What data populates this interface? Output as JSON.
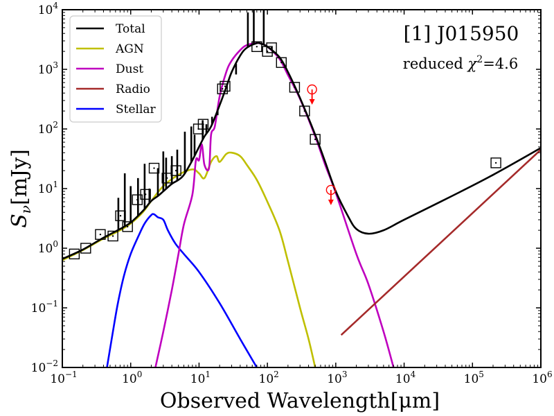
{
  "chart_data": {
    "type": "line",
    "title": "[1] J015950",
    "subtitle_prefix": "reduced ",
    "subtitle_symbol": "χ",
    "subtitle_exponent": "2",
    "subtitle_value": "=4.6",
    "xlabel": "Observed Wavelength",
    "xlabel_unit": "[μm]",
    "ylabel_symbol": "S",
    "ylabel_subscript": "ν",
    "ylabel_unit": "[mJy]",
    "xscale": "log",
    "yscale": "log",
    "xlim": [
      0.1,
      1000000
    ],
    "ylim": [
      0.01,
      10000
    ],
    "x_ticks": [
      {
        "value": 0.1,
        "base": "10",
        "exp": "−1"
      },
      {
        "value": 1,
        "base": "10",
        "exp": "0"
      },
      {
        "value": 10,
        "base": "10",
        "exp": "1"
      },
      {
        "value": 100,
        "base": "10",
        "exp": "2"
      },
      {
        "value": 1000,
        "base": "10",
        "exp": "3"
      },
      {
        "value": 10000,
        "base": "10",
        "exp": "4"
      },
      {
        "value": 100000,
        "base": "10",
        "exp": "5"
      },
      {
        "value": 1000000,
        "base": "10",
        "exp": "6"
      }
    ],
    "y_ticks": [
      {
        "value": 0.01,
        "base": "10",
        "exp": "−2"
      },
      {
        "value": 0.1,
        "base": "10",
        "exp": "−1"
      },
      {
        "value": 1,
        "base": "10",
        "exp": "0"
      },
      {
        "value": 10,
        "base": "10",
        "exp": "1"
      },
      {
        "value": 100,
        "base": "10",
        "exp": "2"
      },
      {
        "value": 1000,
        "base": "10",
        "exp": "3"
      },
      {
        "value": 10000,
        "base": "10",
        "exp": "4"
      }
    ],
    "legend_position": "top-left",
    "series": [
      {
        "name": "Total",
        "color": "#000000",
        "x": [
          0.1,
          0.2,
          0.4,
          0.7,
          1,
          1.5,
          2,
          2.5,
          3,
          4,
          5,
          6,
          8,
          10,
          12,
          15,
          20,
          25,
          30,
          40,
          50,
          70,
          80,
          100,
          150,
          200,
          300,
          500,
          700,
          1000,
          1500,
          2000,
          3000,
          5000,
          10000,
          50000,
          200000,
          1000000
        ],
        "y": [
          0.66,
          0.95,
          1.5,
          2.1,
          2.7,
          4.2,
          6.2,
          7.5,
          9,
          12,
          14,
          17,
          30,
          50,
          75,
          110,
          250,
          500,
          900,
          1700,
          2300,
          2750,
          2700,
          2400,
          1600,
          900,
          330,
          80,
          28,
          9,
          3.5,
          2.1,
          1.75,
          2,
          3,
          7.5,
          17,
          48
        ],
        "spikes": [
          [
            0.66,
            7
          ],
          [
            0.82,
            18
          ],
          [
            1.0,
            11
          ],
          [
            1.28,
            15
          ],
          [
            1.6,
            26
          ],
          [
            1.88,
            10
          ],
          [
            2.5,
            22
          ],
          [
            3.0,
            42
          ],
          [
            3.3,
            33
          ],
          [
            4.0,
            35
          ],
          [
            4.8,
            45
          ],
          [
            6.2,
            90
          ],
          [
            7.7,
            110
          ],
          [
            8.6,
            80
          ],
          [
            11.3,
            140
          ],
          [
            12.8,
            120
          ],
          [
            15.5,
            160
          ],
          [
            18.7,
            170
          ],
          [
            25.9,
            560
          ],
          [
            34.8,
            820
          ],
          [
            51.8,
            9000
          ],
          [
            63.2,
            10000
          ],
          [
            88.4,
            9800
          ],
          [
            121.9,
            1900
          ],
          [
            158,
            1500
          ]
        ]
      },
      {
        "name": "AGN",
        "color": "#bfbf00",
        "x": [
          0.1,
          0.2,
          0.4,
          0.7,
          1,
          1.5,
          2,
          3,
          5,
          8,
          10,
          12,
          15,
          18,
          20,
          25,
          30,
          40,
          50,
          70,
          100,
          150,
          200,
          300,
          400,
          500
        ],
        "y": [
          0.63,
          0.93,
          1.45,
          2.0,
          2.6,
          4.0,
          6.2,
          11,
          17,
          21,
          18,
          15,
          28,
          35,
          28,
          38,
          40,
          35,
          25,
          14,
          6,
          2,
          0.6,
          0.1,
          0.03,
          0.01
        ]
      },
      {
        "name": "Dust",
        "color": "#bf00bf",
        "x": [
          2.3,
          3,
          4,
          5,
          6,
          8,
          9,
          10,
          11,
          12,
          14,
          15,
          17,
          20,
          25,
          30,
          40,
          50,
          70,
          80,
          100,
          150,
          200,
          300,
          500,
          700,
          1000,
          2000,
          3000,
          5000,
          7000
        ],
        "y": [
          0.01,
          0.04,
          0.2,
          0.8,
          2.5,
          8,
          30,
          30,
          55,
          25,
          22,
          80,
          110,
          350,
          900,
          1400,
          2100,
          2550,
          2750,
          2700,
          2400,
          1500,
          800,
          320,
          75,
          25,
          8.5,
          0.8,
          0.25,
          0.04,
          0.01
        ]
      },
      {
        "name": "Radio",
        "color": "#a52a2a",
        "x": [
          1200,
          1000000
        ],
        "y": [
          0.035,
          45
        ]
      },
      {
        "name": "Stellar",
        "color": "#0000ff",
        "x": [
          0.45,
          0.55,
          0.65,
          0.8,
          1,
          1.3,
          1.6,
          2,
          2.2,
          2.5,
          3,
          3.5,
          4.5,
          6,
          10,
          20,
          40,
          70
        ],
        "y": [
          0.01,
          0.04,
          0.12,
          0.35,
          0.8,
          1.6,
          2.6,
          3.6,
          3.7,
          3.3,
          3.0,
          2.0,
          1.2,
          0.8,
          0.4,
          0.12,
          0.03,
          0.01
        ]
      }
    ],
    "observed_points": {
      "marker": "square-with-dot",
      "x": [
        0.15,
        0.22,
        0.36,
        0.55,
        0.71,
        0.9,
        1.25,
        1.65,
        2.2,
        3.4,
        4.6,
        9.8,
        11.5,
        22,
        24,
        70,
        100,
        115,
        160,
        250,
        350,
        500,
        220000
      ],
      "y": [
        0.8,
        1.0,
        1.7,
        1.6,
        3.5,
        2.3,
        6.5,
        8,
        22,
        15,
        20,
        100,
        120,
        470,
        520,
        2400,
        2000,
        2300,
        1300,
        500,
        200,
        67,
        27
      ]
    },
    "upper_limits": {
      "color": "#ff0000",
      "x": [
        450,
        850
      ],
      "y": [
        460,
        9.5
      ]
    }
  }
}
